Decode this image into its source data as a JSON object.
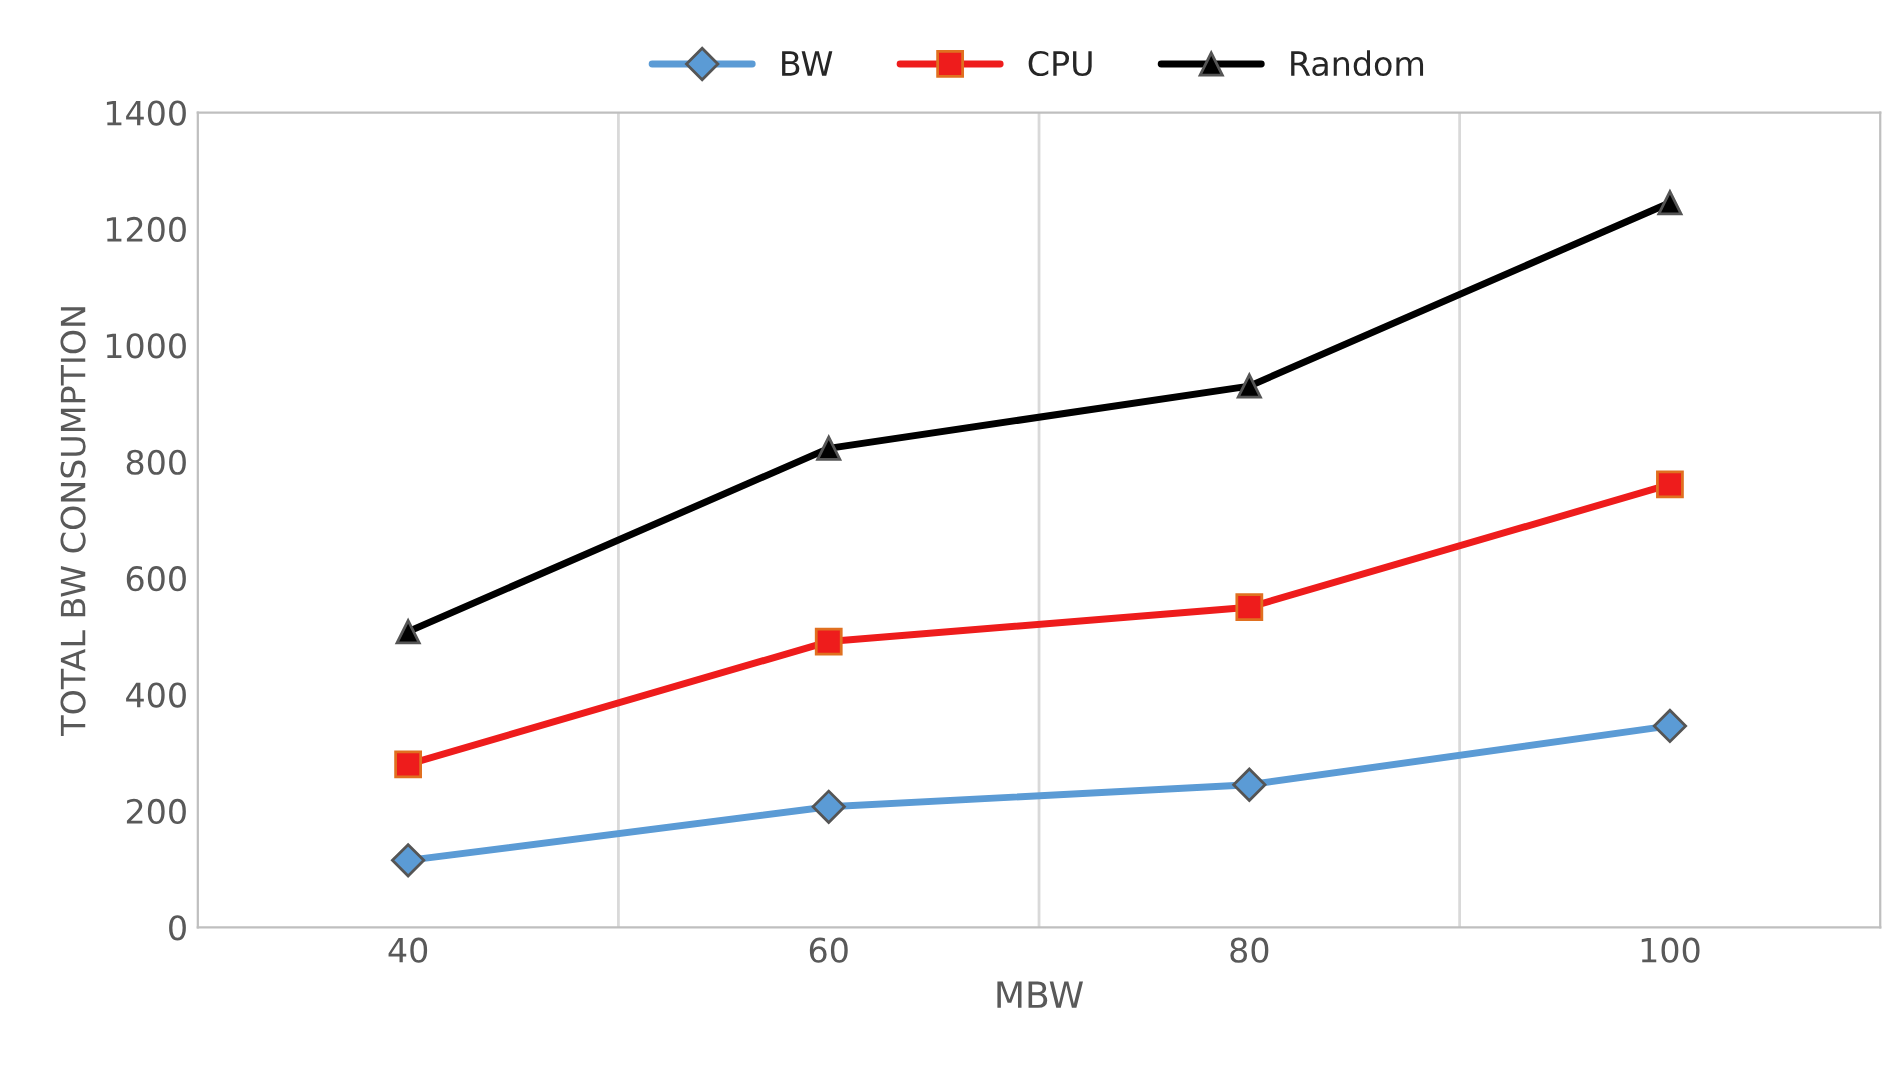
{
  "chart_data": {
    "type": "line",
    "xlabel": "MBW",
    "ylabel": "TOTAL BW CONSUMPTION",
    "categories": [
      "40",
      "60",
      "80",
      "100"
    ],
    "series": [
      {
        "name": "BW",
        "color": "#5b9bd5",
        "marker": "diamond",
        "values": [
          115,
          207,
          245,
          346
        ]
      },
      {
        "name": "CPU",
        "color": "#ee1c1c",
        "marker": "square",
        "values": [
          280,
          491,
          550,
          761
        ]
      },
      {
        "name": "Random",
        "color": "#000000",
        "marker": "triangle",
        "values": [
          508,
          823,
          930,
          1245
        ]
      }
    ],
    "ylim": [
      0,
      1400
    ],
    "yticks": [
      0,
      200,
      400,
      600,
      800,
      1000,
      1200,
      1400
    ],
    "grid": "x",
    "legend": "top",
    "line_style": "solid"
  }
}
